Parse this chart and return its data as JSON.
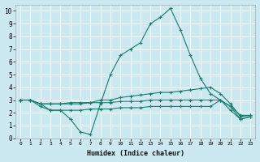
{
  "xlabel": "Humidex (Indice chaleur)",
  "bg_color": "#cce8f0",
  "line_color": "#1a7a6e",
  "grid_color": "#ffffff",
  "xlim": [
    -0.5,
    23.5
  ],
  "ylim": [
    0,
    10.5
  ],
  "xticks": [
    0,
    1,
    2,
    3,
    4,
    5,
    6,
    7,
    8,
    9,
    10,
    11,
    12,
    13,
    14,
    15,
    16,
    17,
    18,
    19,
    20,
    21,
    22,
    23
  ],
  "yticks": [
    0,
    1,
    2,
    3,
    4,
    5,
    6,
    7,
    8,
    9,
    10
  ],
  "lines": [
    {
      "x": [
        0,
        1,
        2,
        3,
        4,
        5,
        6,
        7,
        8,
        9,
        10,
        11,
        12,
        13,
        14,
        15,
        16,
        17,
        18,
        19,
        20,
        21,
        22,
        23
      ],
      "y": [
        3.0,
        3.0,
        2.7,
        2.2,
        2.2,
        1.5,
        0.5,
        0.3,
        2.7,
        5.0,
        6.5,
        7.0,
        7.5,
        9.0,
        9.5,
        10.2,
        8.5,
        6.5,
        4.7,
        3.5,
        3.0,
        2.5,
        1.5,
        1.7
      ]
    },
    {
      "x": [
        0,
        1,
        2,
        3,
        4,
        5,
        6,
        7,
        8,
        9,
        10,
        11,
        12,
        13,
        14,
        15,
        16,
        17,
        18,
        19,
        20,
        21,
        22,
        23
      ],
      "y": [
        3.0,
        3.0,
        2.7,
        2.7,
        2.7,
        2.8,
        2.8,
        2.8,
        3.0,
        3.0,
        3.2,
        3.3,
        3.4,
        3.5,
        3.6,
        3.6,
        3.7,
        3.8,
        3.9,
        4.0,
        3.5,
        2.7,
        1.7,
        1.8
      ]
    },
    {
      "x": [
        0,
        1,
        2,
        3,
        4,
        5,
        6,
        7,
        8,
        9,
        10,
        11,
        12,
        13,
        14,
        15,
        16,
        17,
        18,
        19,
        20,
        21,
        22,
        23
      ],
      "y": [
        3.0,
        3.0,
        2.7,
        2.7,
        2.7,
        2.7,
        2.7,
        2.8,
        2.8,
        2.8,
        2.9,
        2.9,
        2.9,
        3.0,
        3.0,
        3.0,
        3.0,
        3.0,
        3.0,
        3.0,
        3.0,
        2.5,
        1.8,
        1.8
      ]
    },
    {
      "x": [
        0,
        1,
        2,
        3,
        4,
        5,
        6,
        7,
        8,
        9,
        10,
        11,
        12,
        13,
        14,
        15,
        16,
        17,
        18,
        19,
        20,
        21,
        22,
        23
      ],
      "y": [
        3.0,
        3.0,
        2.5,
        2.2,
        2.2,
        2.2,
        2.2,
        2.3,
        2.3,
        2.3,
        2.4,
        2.4,
        2.4,
        2.5,
        2.5,
        2.5,
        2.5,
        2.5,
        2.5,
        2.5,
        3.0,
        2.2,
        1.5,
        1.7
      ]
    }
  ]
}
